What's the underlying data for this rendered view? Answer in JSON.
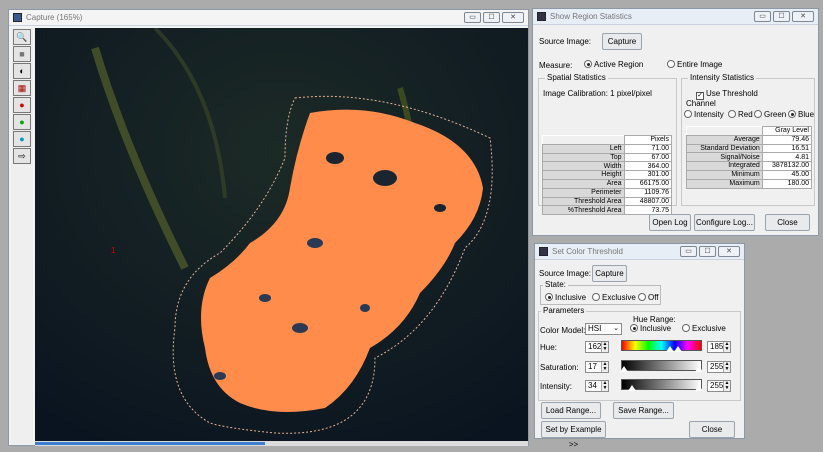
{
  "capture": {
    "title": "Capture (165%)",
    "marker": "1"
  },
  "region": {
    "title": "Show Region Statistics",
    "source_label": "Source Image:",
    "source_btn": "Capture",
    "measure_label": "Measure:",
    "measure_active": "Active Region",
    "measure_entire": "Entire Image",
    "spatial_title": "Spatial Statistics",
    "calibration": "Image Calibration:  1 pixel/pixel",
    "spatial_header": "Pixels",
    "spatial_rows": [
      {
        "label": "Left",
        "value": "71.00"
      },
      {
        "label": "Top",
        "value": "67.00"
      },
      {
        "label": "Width",
        "value": "364.00"
      },
      {
        "label": "Height",
        "value": "301.00"
      },
      {
        "label": "Area",
        "value": "66175.00"
      },
      {
        "label": "Perimeter",
        "value": "1109.76"
      },
      {
        "label": "Threshold Area",
        "value": "48807.00"
      },
      {
        "label": "%Threshold Area",
        "value": "73.75"
      }
    ],
    "intensity_title": "Intensity Statistics",
    "use_threshold": "Use Threshold",
    "channel_label": "Channel",
    "channels": [
      "Intensity",
      "Red",
      "Green",
      "Blue"
    ],
    "intensity_header": "Gray Level",
    "intensity_rows": [
      {
        "label": "Average",
        "value": "79.46"
      },
      {
        "label": "Standard Deviation",
        "value": "16.51"
      },
      {
        "label": "Signal/Noise",
        "value": "4.81"
      },
      {
        "label": "Integrated",
        "value": "3878132.00"
      },
      {
        "label": "Minimum",
        "value": "45.00"
      },
      {
        "label": "Maximum",
        "value": "180.00"
      }
    ],
    "open_log": "Open Log",
    "configure_log": "Configure Log...",
    "close": "Close"
  },
  "threshold": {
    "title": "Set Color Threshold",
    "source_label": "Source Image:",
    "source_btn": "Capture",
    "state_label": "State:",
    "state_inclusive": "Inclusive",
    "state_exclusive": "Exclusive",
    "state_off": "Off",
    "params_title": "Parameters",
    "hue_range_label": "Hue Range:",
    "hue_inclusive": "Inclusive",
    "hue_exclusive": "Exclusive",
    "color_model_label": "Color Model:",
    "color_model": "HSI",
    "hue_label": "Hue:",
    "hue_low": "162",
    "hue_high": "185",
    "sat_label": "Saturation:",
    "sat_low": "17",
    "sat_high": "255",
    "int_label": "Intensity:",
    "int_low": "34",
    "int_high": "255",
    "load_range": "Load Range...",
    "save_range": "Save Range...",
    "set_by_example": "Set by Example >>",
    "close": "Close"
  },
  "window_controls": {
    "minimize": "▭",
    "maximize": "☐",
    "close": "✕"
  }
}
